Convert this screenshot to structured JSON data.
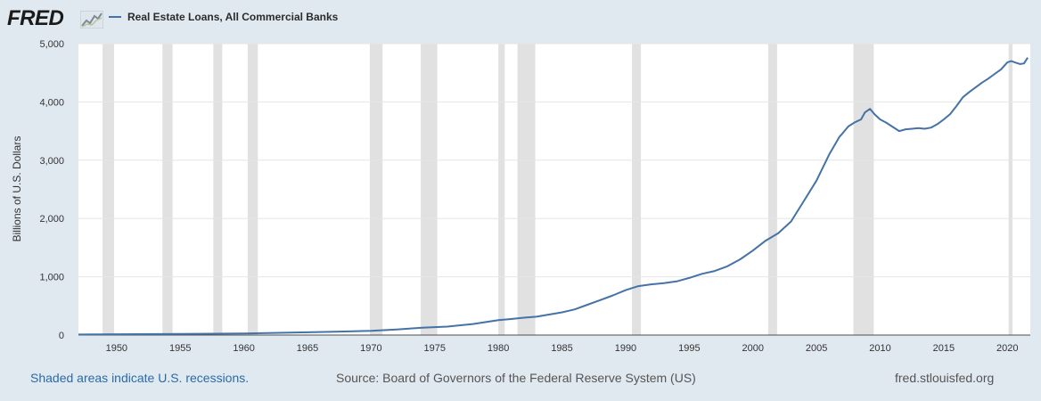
{
  "header": {
    "logo_text": "FRED",
    "series_title": "Real Estate Loans, All Commercial Banks",
    "series_color": "#4572a7"
  },
  "footer": {
    "recession_note": "Shaded areas indicate U.S. recessions.",
    "source": "Source: Board of Governors of the Federal Reserve System (US)",
    "site": "fred.stlouisfed.org"
  },
  "chart_data": {
    "type": "line",
    "title": "",
    "ylabel": "Billions of U.S. Dollars",
    "xlabel": "",
    "xlim": [
      1947.0,
      2021.8
    ],
    "ylim": [
      0,
      5000
    ],
    "x_ticks": [
      1950,
      1955,
      1960,
      1965,
      1970,
      1975,
      1980,
      1985,
      1990,
      1995,
      2000,
      2005,
      2010,
      2015,
      2020
    ],
    "y_ticks": [
      0,
      1000,
      2000,
      3000,
      4000,
      5000
    ],
    "y_tick_labels": [
      "0",
      "1,000",
      "2,000",
      "3,000",
      "4,000",
      "5,000"
    ],
    "grid": "horizontal",
    "legend": "top-left",
    "recessions": [
      [
        1948.9,
        1949.8
      ],
      [
        1953.6,
        1954.4
      ],
      [
        1957.6,
        1958.3
      ],
      [
        1960.3,
        1961.1
      ],
      [
        1969.9,
        1970.9
      ],
      [
        1973.9,
        1975.2
      ],
      [
        1980.0,
        1980.5
      ],
      [
        1981.5,
        1982.9
      ],
      [
        1990.5,
        1991.2
      ],
      [
        2001.2,
        2001.9
      ],
      [
        2007.9,
        2009.5
      ],
      [
        2020.1,
        2020.4
      ]
    ],
    "series": [
      {
        "name": "Real Estate Loans, All Commercial Banks",
        "color": "#4572a7",
        "points": [
          [
            1947.0,
            9
          ],
          [
            1950,
            13
          ],
          [
            1955,
            20
          ],
          [
            1960,
            28
          ],
          [
            1965,
            47
          ],
          [
            1970,
            72
          ],
          [
            1972,
            95
          ],
          [
            1974,
            125
          ],
          [
            1976,
            145
          ],
          [
            1978,
            190
          ],
          [
            1980,
            255
          ],
          [
            1981,
            275
          ],
          [
            1982,
            298
          ],
          [
            1983,
            315
          ],
          [
            1985,
            390
          ],
          [
            1986,
            440
          ],
          [
            1987,
            520
          ],
          [
            1988,
            600
          ],
          [
            1989,
            680
          ],
          [
            1990,
            770
          ],
          [
            1991,
            840
          ],
          [
            1992,
            870
          ],
          [
            1993,
            890
          ],
          [
            1994,
            920
          ],
          [
            1995,
            980
          ],
          [
            1996,
            1050
          ],
          [
            1997,
            1100
          ],
          [
            1998,
            1180
          ],
          [
            1999,
            1300
          ],
          [
            2000,
            1450
          ],
          [
            2001,
            1620
          ],
          [
            2002,
            1750
          ],
          [
            2003,
            1950
          ],
          [
            2004,
            2300
          ],
          [
            2005,
            2650
          ],
          [
            2006,
            3100
          ],
          [
            2006.8,
            3400
          ],
          [
            2007,
            3450
          ],
          [
            2007.5,
            3580
          ],
          [
            2008,
            3650
          ],
          [
            2008.5,
            3700
          ],
          [
            2008.8,
            3820
          ],
          [
            2009.2,
            3880
          ],
          [
            2009.6,
            3780
          ],
          [
            2010,
            3700
          ],
          [
            2010.5,
            3640
          ],
          [
            2011,
            3570
          ],
          [
            2011.5,
            3500
          ],
          [
            2012,
            3530
          ],
          [
            2012.5,
            3540
          ],
          [
            2013,
            3550
          ],
          [
            2013.5,
            3540
          ],
          [
            2014,
            3560
          ],
          [
            2014.5,
            3620
          ],
          [
            2015,
            3700
          ],
          [
            2015.5,
            3790
          ],
          [
            2016,
            3930
          ],
          [
            2016.5,
            4080
          ],
          [
            2017,
            4170
          ],
          [
            2017.5,
            4250
          ],
          [
            2018,
            4330
          ],
          [
            2018.5,
            4400
          ],
          [
            2019,
            4480
          ],
          [
            2019.5,
            4560
          ],
          [
            2020,
            4680
          ],
          [
            2020.3,
            4700
          ],
          [
            2020.7,
            4670
          ],
          [
            2021,
            4650
          ],
          [
            2021.3,
            4660
          ],
          [
            2021.6,
            4760
          ]
        ]
      }
    ]
  }
}
